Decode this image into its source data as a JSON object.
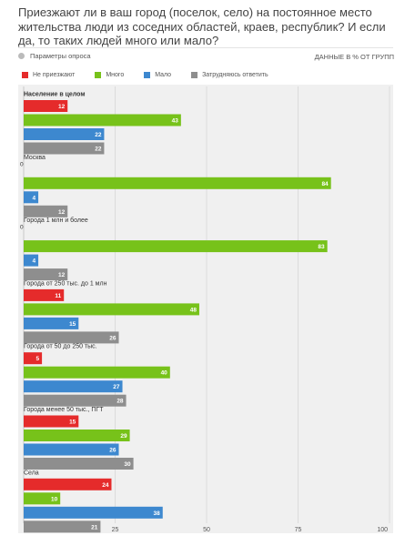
{
  "title": "Приезжают ли в ваш город (поселок, село) на постоянное место жительства люди из соседних областей, краев, республик? И если да, то таких людей много или мало?",
  "params_label": "Параметры опроса",
  "units_label": "ДАННЫЕ В % ОТ ГРУПП",
  "colors": {
    "Не приезжают": "#e52b2b",
    "Много": "#77c21a",
    "Мало": "#3d88cf",
    "Затрудняюсь ответить": "#8e8e8e"
  },
  "chart_data": {
    "type": "bar",
    "orientation": "horizontal",
    "xlim": [
      0,
      100
    ],
    "xticks": [
      0,
      25,
      50,
      75,
      100
    ],
    "grid": true,
    "legend_position": "top",
    "series_names": [
      "Не приезжают",
      "Много",
      "Мало",
      "Затрудняюсь ответить"
    ],
    "groups": [
      {
        "name": "Население в целом",
        "values": [
          12,
          43,
          22,
          22
        ]
      },
      {
        "name": "Москва",
        "values": [
          0,
          84,
          4,
          12
        ]
      },
      {
        "name": "Города 1 млн и более",
        "values": [
          0,
          83,
          4,
          12
        ]
      },
      {
        "name": "Города от 250 тыс. до 1 млн",
        "values": [
          11,
          48,
          15,
          26
        ]
      },
      {
        "name": "Города от 50 до 250 тыс.",
        "values": [
          5,
          40,
          27,
          28
        ]
      },
      {
        "name": "Города менее 50 тыс., ПГТ",
        "values": [
          15,
          29,
          26,
          30
        ]
      },
      {
        "name": "Села",
        "values": [
          24,
          10,
          38,
          21
        ]
      }
    ]
  }
}
